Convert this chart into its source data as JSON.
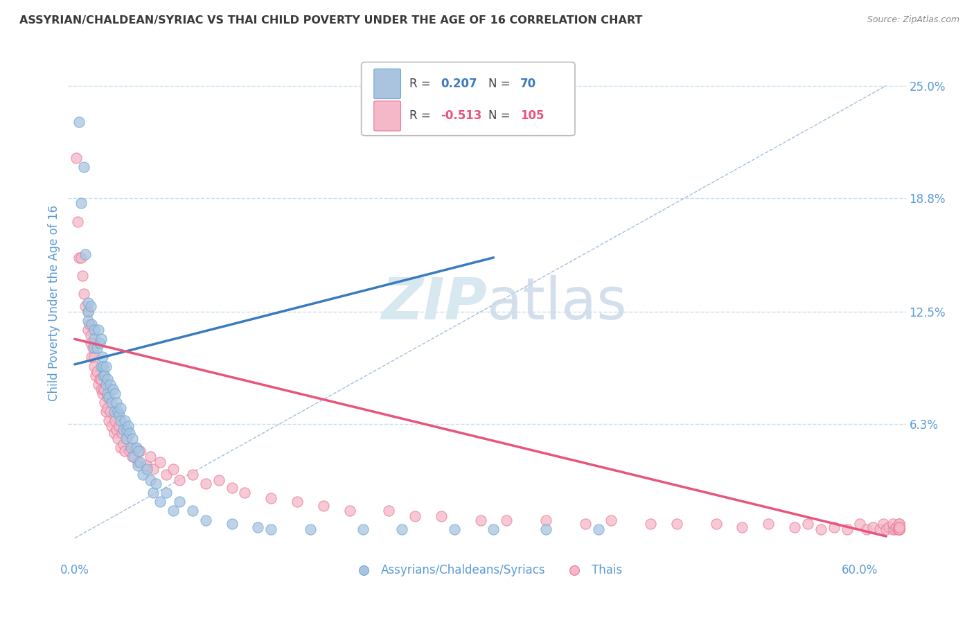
{
  "title": "ASSYRIAN/CHALDEAN/SYRIAC VS THAI CHILD POVERTY UNDER THE AGE OF 16 CORRELATION CHART",
  "source": "Source: ZipAtlas.com",
  "ylabel": "Child Poverty Under the Age of 16",
  "blue_color": "#aac4e0",
  "blue_edge_color": "#6aaad4",
  "blue_line_color": "#3a7bbf",
  "pink_color": "#f5b8c8",
  "pink_edge_color": "#e87898",
  "pink_line_color": "#e8547a",
  "grid_color": "#c8dff0",
  "ref_line_color": "#9ab8d8",
  "title_color": "#3a3a3a",
  "axis_label_color": "#5b9bd5",
  "watermark_color": "#d8e8f0",
  "xlim": [
    -0.005,
    0.635
  ],
  "ylim": [
    -0.01,
    0.27
  ],
  "ytick_vals": [
    0.063,
    0.125,
    0.188,
    0.25
  ],
  "ytick_labels": [
    "6.3%",
    "12.5%",
    "18.8%",
    "25.0%"
  ],
  "blue_n": 70,
  "pink_n": 105,
  "blue_r": "0.207",
  "pink_r": "-0.513",
  "blue_trend_x": [
    0.0,
    0.32
  ],
  "blue_trend_y": [
    0.096,
    0.155
  ],
  "pink_trend_x": [
    0.0,
    0.62
  ],
  "pink_trend_y": [
    0.11,
    0.001
  ],
  "ref_line_x": [
    0.0,
    0.62
  ],
  "ref_line_y": [
    0.0,
    0.25
  ],
  "blue_scatter_x": [
    0.003,
    0.005,
    0.007,
    0.008,
    0.01,
    0.01,
    0.01,
    0.012,
    0.013,
    0.015,
    0.015,
    0.015,
    0.017,
    0.018,
    0.019,
    0.02,
    0.02,
    0.021,
    0.022,
    0.022,
    0.023,
    0.024,
    0.024,
    0.025,
    0.025,
    0.026,
    0.027,
    0.028,
    0.029,
    0.03,
    0.031,
    0.032,
    0.033,
    0.034,
    0.035,
    0.035,
    0.037,
    0.038,
    0.039,
    0.04,
    0.041,
    0.042,
    0.043,
    0.044,
    0.045,
    0.047,
    0.048,
    0.049,
    0.05,
    0.052,
    0.055,
    0.058,
    0.06,
    0.062,
    0.065,
    0.07,
    0.075,
    0.08,
    0.09,
    0.1,
    0.12,
    0.14,
    0.15,
    0.18,
    0.22,
    0.25,
    0.29,
    0.32,
    0.36,
    0.4
  ],
  "blue_scatter_y": [
    0.23,
    0.185,
    0.205,
    0.157,
    0.125,
    0.13,
    0.12,
    0.128,
    0.118,
    0.115,
    0.11,
    0.105,
    0.105,
    0.115,
    0.108,
    0.11,
    0.095,
    0.1,
    0.095,
    0.09,
    0.09,
    0.085,
    0.095,
    0.08,
    0.088,
    0.078,
    0.085,
    0.075,
    0.082,
    0.07,
    0.08,
    0.075,
    0.07,
    0.068,
    0.065,
    0.072,
    0.06,
    0.065,
    0.055,
    0.06,
    0.062,
    0.058,
    0.05,
    0.055,
    0.045,
    0.05,
    0.04,
    0.048,
    0.042,
    0.035,
    0.038,
    0.032,
    0.025,
    0.03,
    0.02,
    0.025,
    0.015,
    0.02,
    0.015,
    0.01,
    0.008,
    0.006,
    0.005,
    0.005,
    0.005,
    0.005,
    0.005,
    0.005,
    0.005,
    0.005
  ],
  "pink_scatter_x": [
    0.001,
    0.002,
    0.003,
    0.005,
    0.006,
    0.007,
    0.008,
    0.01,
    0.01,
    0.011,
    0.012,
    0.012,
    0.013,
    0.014,
    0.015,
    0.015,
    0.016,
    0.017,
    0.018,
    0.019,
    0.02,
    0.02,
    0.021,
    0.022,
    0.023,
    0.023,
    0.024,
    0.025,
    0.025,
    0.026,
    0.027,
    0.028,
    0.03,
    0.03,
    0.031,
    0.032,
    0.033,
    0.034,
    0.035,
    0.036,
    0.037,
    0.038,
    0.04,
    0.042,
    0.044,
    0.046,
    0.048,
    0.05,
    0.055,
    0.058,
    0.06,
    0.065,
    0.07,
    0.075,
    0.08,
    0.09,
    0.1,
    0.11,
    0.12,
    0.13,
    0.15,
    0.17,
    0.19,
    0.21,
    0.24,
    0.26,
    0.28,
    0.31,
    0.33,
    0.36,
    0.39,
    0.41,
    0.44,
    0.46,
    0.49,
    0.51,
    0.53,
    0.55,
    0.56,
    0.57,
    0.58,
    0.59,
    0.6,
    0.605,
    0.61,
    0.615,
    0.618,
    0.62,
    0.622,
    0.625,
    0.625,
    0.627,
    0.628,
    0.629,
    0.63,
    0.63,
    0.63,
    0.63,
    0.63,
    0.63,
    0.63,
    0.63,
    0.63,
    0.63,
    0.63
  ],
  "pink_scatter_y": [
    0.21,
    0.175,
    0.155,
    0.155,
    0.145,
    0.135,
    0.128,
    0.125,
    0.115,
    0.118,
    0.112,
    0.108,
    0.1,
    0.105,
    0.1,
    0.095,
    0.09,
    0.092,
    0.085,
    0.088,
    0.082,
    0.088,
    0.08,
    0.082,
    0.075,
    0.082,
    0.07,
    0.078,
    0.072,
    0.065,
    0.07,
    0.062,
    0.068,
    0.058,
    0.065,
    0.06,
    0.055,
    0.062,
    0.05,
    0.058,
    0.052,
    0.048,
    0.055,
    0.048,
    0.045,
    0.05,
    0.042,
    0.048,
    0.04,
    0.045,
    0.038,
    0.042,
    0.035,
    0.038,
    0.032,
    0.035,
    0.03,
    0.032,
    0.028,
    0.025,
    0.022,
    0.02,
    0.018,
    0.015,
    0.015,
    0.012,
    0.012,
    0.01,
    0.01,
    0.01,
    0.008,
    0.01,
    0.008,
    0.008,
    0.008,
    0.006,
    0.008,
    0.006,
    0.008,
    0.005,
    0.006,
    0.005,
    0.008,
    0.005,
    0.006,
    0.005,
    0.008,
    0.005,
    0.006,
    0.005,
    0.008,
    0.005,
    0.006,
    0.005,
    0.008,
    0.005,
    0.006,
    0.005,
    0.006,
    0.005,
    0.008,
    0.005,
    0.006,
    0.005,
    0.006
  ]
}
